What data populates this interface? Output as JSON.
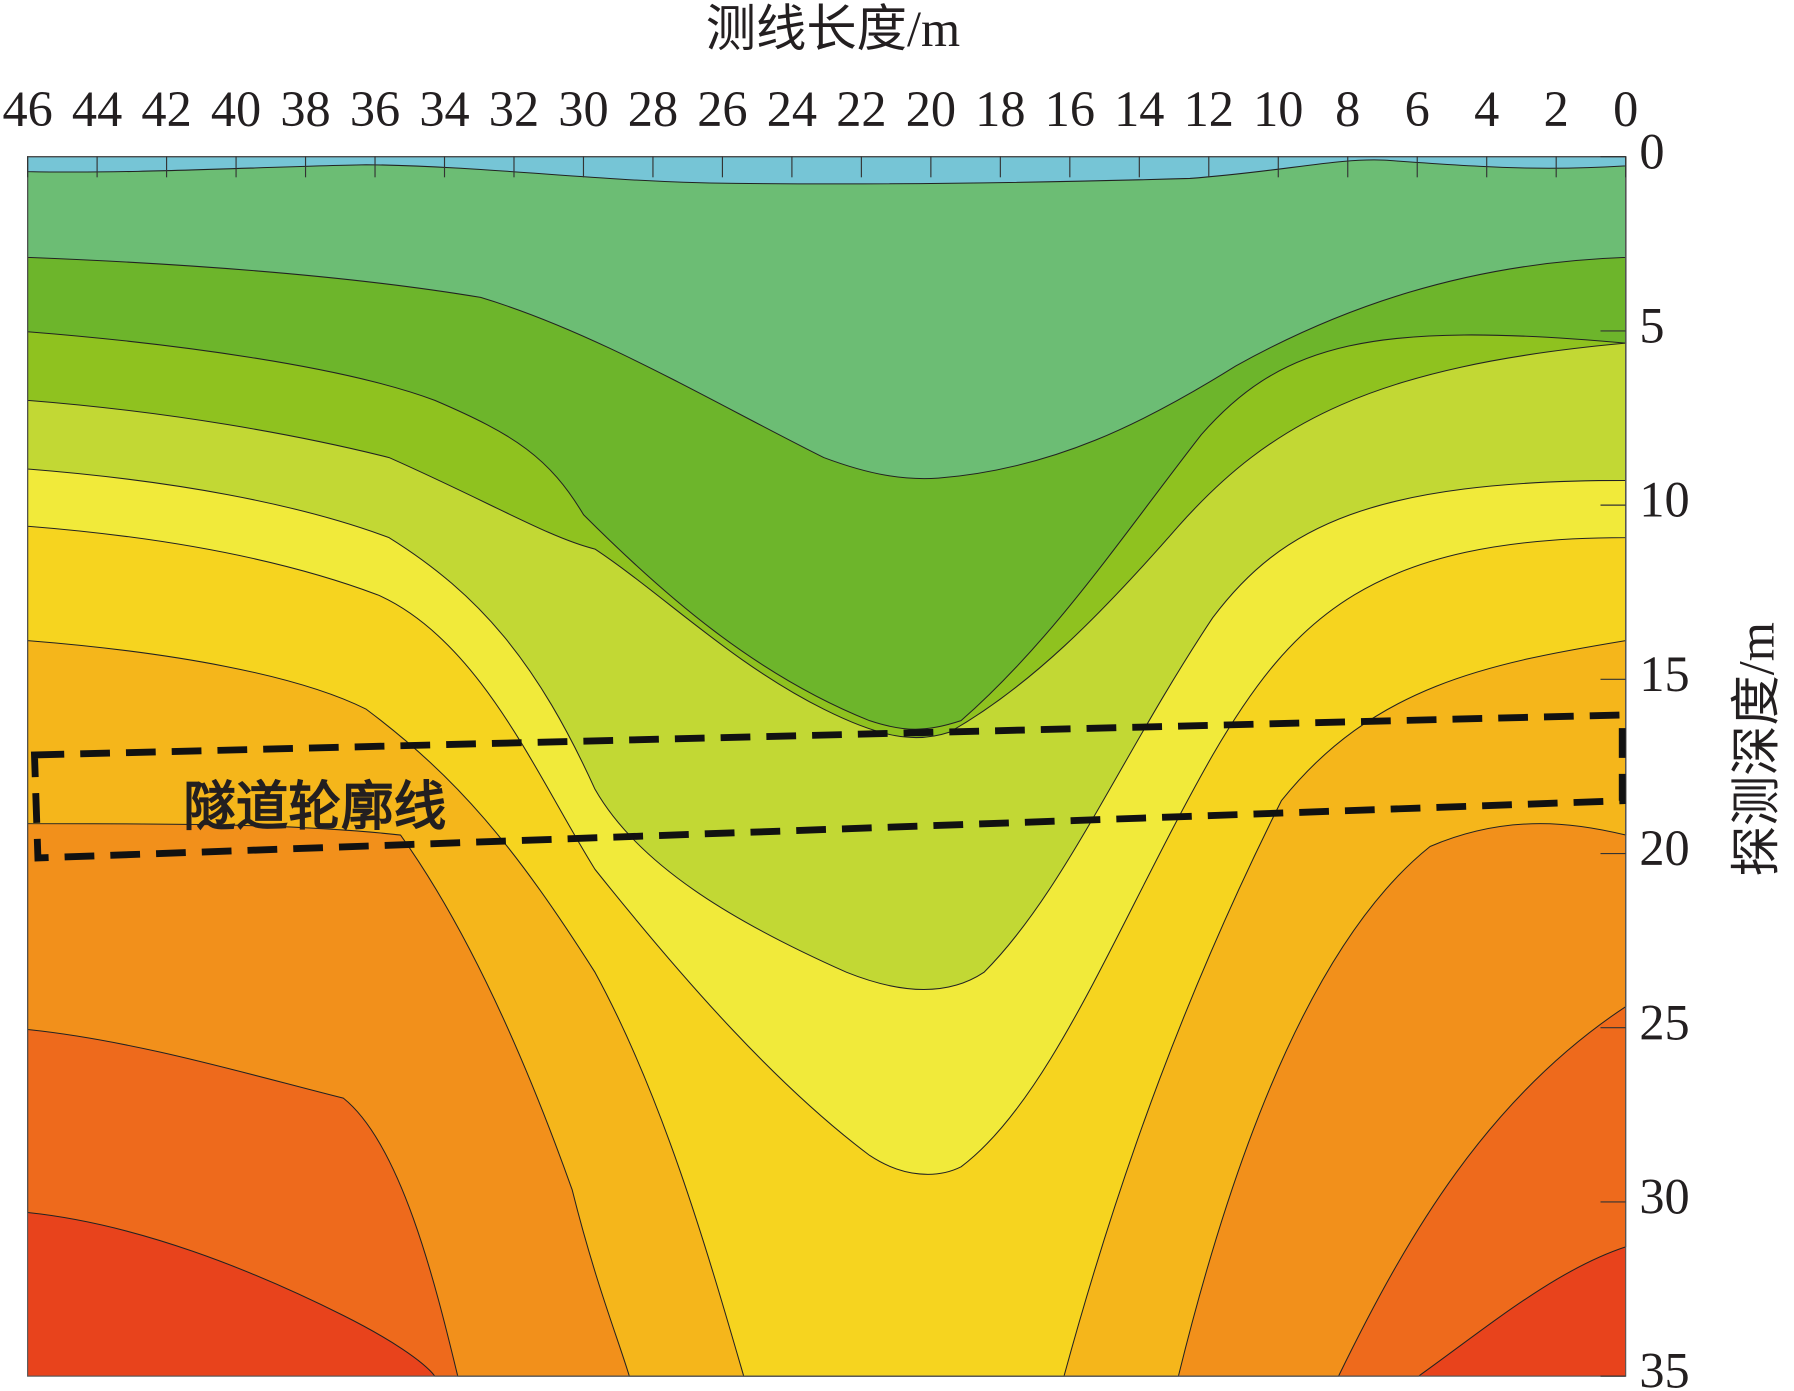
{
  "chart_data": {
    "type": "contour",
    "x_label": "测线长度/m",
    "y_label": "探测深度/m",
    "xlim": [
      46,
      0
    ],
    "xticks": [
      46,
      44,
      42,
      40,
      38,
      36,
      34,
      32,
      30,
      28,
      26,
      24,
      22,
      20,
      18,
      16,
      14,
      12,
      10,
      8,
      6,
      4,
      2,
      0
    ],
    "ylim": [
      0,
      35
    ],
    "yticks": [
      0,
      5,
      10,
      15,
      20,
      25,
      30,
      35
    ],
    "annotations": [
      "隧道轮廓线"
    ]
  }
}
